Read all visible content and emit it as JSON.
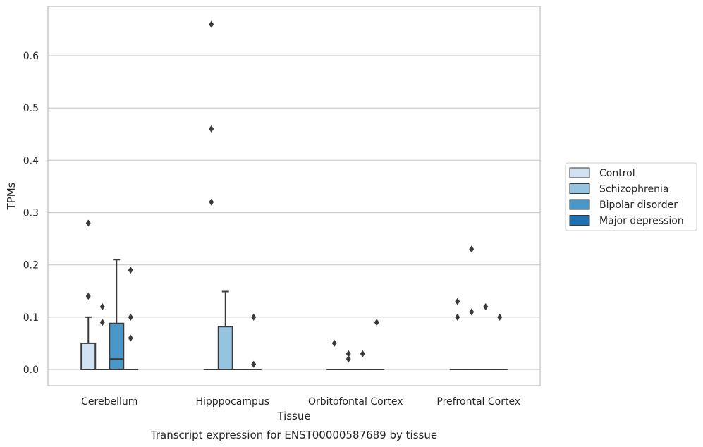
{
  "chart_data": {
    "type": "box",
    "title": "",
    "caption": "Transcript expression for ENST00000587689 by tissue",
    "xlabel": "Tissue",
    "ylabel": "TPMs",
    "ylim": [
      -0.033,
      0.694
    ],
    "yticks": [
      "0.0",
      "0.1",
      "0.2",
      "0.3",
      "0.4",
      "0.5",
      "0.6"
    ],
    "ytick_values": [
      0,
      0.1,
      0.2,
      0.3,
      0.4,
      0.5,
      0.6
    ],
    "categories": [
      "Cerebellum",
      "Hipppocampus",
      "Orbitofontal Cortex",
      "Prefrontal Cortex"
    ],
    "grid": true,
    "legend_position": "right",
    "series": [
      {
        "name": "Control",
        "color": "#d0e1f2",
        "boxes": [
          {
            "category": "Cerebellum",
            "min": 0,
            "q1": 0,
            "median": 0,
            "q3": 0.05,
            "max": 0.1,
            "outliers": [
              0.14,
              0.28
            ]
          },
          {
            "category": "Hipppocampus",
            "min": 0,
            "q1": 0,
            "median": 0,
            "q3": 0,
            "max": 0,
            "outliers": [
              0.32,
              0.46,
              0.66
            ]
          },
          {
            "category": "Orbitofontal Cortex",
            "min": 0,
            "q1": 0,
            "median": 0,
            "q3": 0,
            "max": 0,
            "outliers": [
              0.05
            ]
          },
          {
            "category": "Prefrontal Cortex",
            "min": 0,
            "q1": 0,
            "median": 0,
            "q3": 0,
            "max": 0,
            "outliers": [
              0.1,
              0.13
            ]
          }
        ]
      },
      {
        "name": "Schizophrenia",
        "color": "#94c4df",
        "boxes": [
          {
            "category": "Cerebellum",
            "min": 0,
            "q1": 0,
            "median": 0,
            "q3": 0,
            "max": 0,
            "outliers": [
              0.09,
              0.12
            ]
          },
          {
            "category": "Hipppocampus",
            "min": 0,
            "q1": 0,
            "median": 0,
            "q3": 0.082,
            "max": 0.149,
            "outliers": []
          },
          {
            "category": "Orbitofontal Cortex",
            "min": 0,
            "q1": 0,
            "median": 0,
            "q3": 0,
            "max": 0,
            "outliers": [
              0.02,
              0.03
            ]
          },
          {
            "category": "Prefrontal Cortex",
            "min": 0,
            "q1": 0,
            "median": 0,
            "q3": 0,
            "max": 0,
            "outliers": [
              0.11,
              0.23
            ]
          }
        ]
      },
      {
        "name": "Bipolar disorder",
        "color": "#4a98c9",
        "boxes": [
          {
            "category": "Cerebellum",
            "min": 0,
            "q1": 0,
            "median": 0.02,
            "q3": 0.088,
            "max": 0.21,
            "outliers": []
          },
          {
            "category": "Hipppocampus",
            "min": 0,
            "q1": 0,
            "median": 0,
            "q3": 0,
            "max": 0,
            "outliers": []
          },
          {
            "category": "Orbitofontal Cortex",
            "min": 0,
            "q1": 0,
            "median": 0,
            "q3": 0,
            "max": 0,
            "outliers": [
              0.03
            ]
          },
          {
            "category": "Prefrontal Cortex",
            "min": 0,
            "q1": 0,
            "median": 0,
            "q3": 0,
            "max": 0,
            "outliers": [
              0.12
            ]
          }
        ]
      },
      {
        "name": "Major depression",
        "color": "#2070b4",
        "boxes": [
          {
            "category": "Cerebellum",
            "min": 0,
            "q1": 0,
            "median": 0,
            "q3": 0,
            "max": 0,
            "outliers": [
              0.06,
              0.1,
              0.19
            ]
          },
          {
            "category": "Hipppocampus",
            "min": 0,
            "q1": 0,
            "median": 0,
            "q3": 0,
            "max": 0,
            "outliers": [
              0.01,
              0.1
            ]
          },
          {
            "category": "Orbitofontal Cortex",
            "min": 0,
            "q1": 0,
            "median": 0,
            "q3": 0,
            "max": 0,
            "outliers": [
              0.09
            ]
          },
          {
            "category": "Prefrontal Cortex",
            "min": 0,
            "q1": 0,
            "median": 0,
            "q3": 0,
            "max": 0,
            "outliers": [
              0.1
            ]
          }
        ]
      }
    ]
  }
}
